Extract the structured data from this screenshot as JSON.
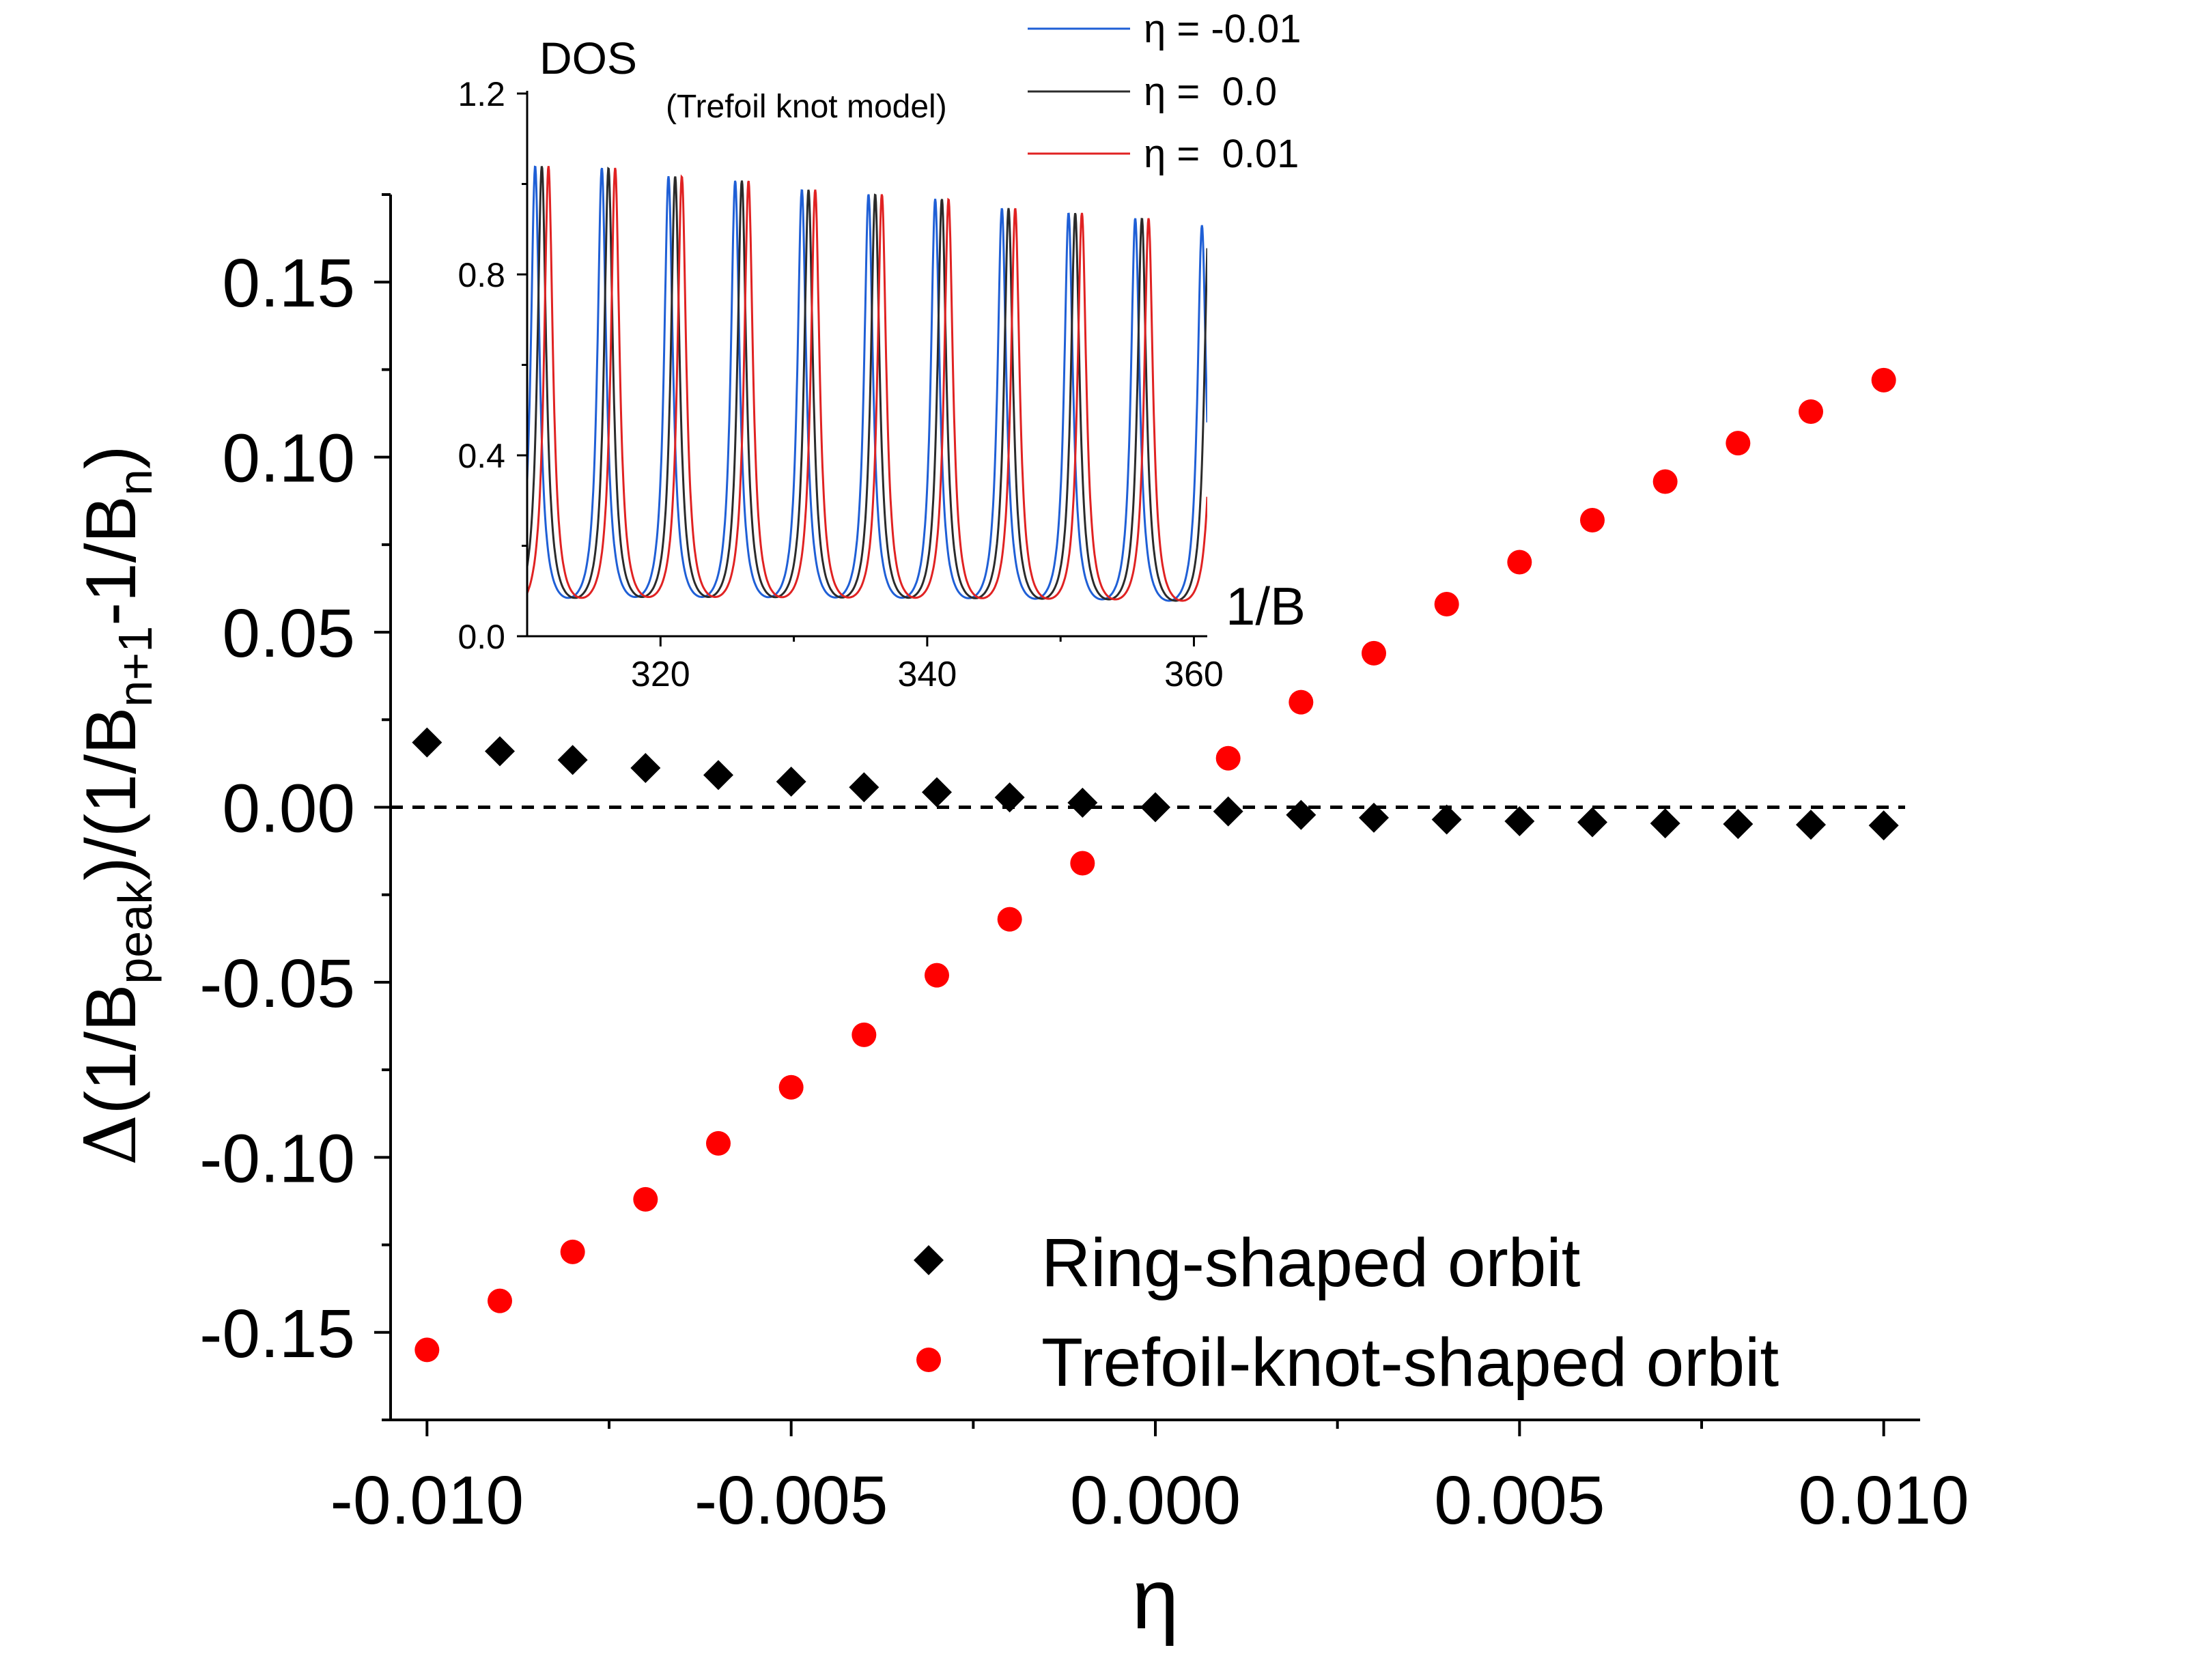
{
  "chart_data": [
    {
      "type": "scatter",
      "title": "",
      "xlabel": "η",
      "ylabel": "Δ(1/B_peak)/(1/B_n+1 - 1/B_n)",
      "ylabel_parts": {
        "prefix": "Δ(1/B",
        "sub1": "peak",
        "mid1": ")/(1/B",
        "sub2": "n+1",
        "mid2": "-1/B",
        "sub3": "n",
        "suffix": ")"
      },
      "xlim": [
        -0.0105,
        0.0105
      ],
      "ylim": [
        -0.175,
        0.175
      ],
      "x_ticks": [
        -0.01,
        -0.005,
        0.0,
        0.005,
        0.01
      ],
      "x_tick_labels": [
        "-0.010",
        "-0.005",
        "0.000",
        "0.005",
        "0.010"
      ],
      "y_ticks": [
        -0.15,
        -0.1,
        -0.05,
        0.0,
        0.05,
        0.1,
        0.15
      ],
      "y_tick_labels": [
        "-0.15",
        "-0.10",
        "-0.05",
        "0.00",
        "0.05",
        "0.10",
        "0.15"
      ],
      "reference_line": {
        "y": 0.0,
        "style": "dashed"
      },
      "legend_position": "bottom-right",
      "series": [
        {
          "name": "Ring-shaped orbit",
          "marker": "diamond",
          "color": "#000000",
          "x": [
            -0.01,
            -0.009,
            -0.008,
            -0.007,
            -0.006,
            -0.005,
            -0.004,
            -0.003,
            -0.002,
            -0.001,
            0.0,
            0.001,
            0.002,
            0.003,
            0.004,
            0.005,
            0.006,
            0.007,
            0.008,
            0.009,
            0.01
          ],
          "y": [
            0.0185,
            0.016,
            0.0135,
            0.0112,
            0.0092,
            0.0073,
            0.0057,
            0.0043,
            0.0028,
            0.0013,
            0.0,
            -0.0012,
            -0.0022,
            -0.003,
            -0.0035,
            -0.004,
            -0.0043,
            -0.0046,
            -0.0048,
            -0.005,
            -0.0052
          ]
        },
        {
          "name": "Trefoil-knot-shaped orbit",
          "marker": "circle",
          "color": "#ff0000",
          "x": [
            -0.01,
            -0.009,
            -0.008,
            -0.007,
            -0.006,
            -0.005,
            -0.004,
            -0.003,
            -0.002,
            -0.001,
            0.001,
            0.002,
            0.003,
            0.004,
            0.005,
            0.006,
            0.007,
            0.008,
            0.009,
            0.01
          ],
          "y": [
            -0.155,
            -0.141,
            -0.127,
            -0.112,
            -0.096,
            -0.08,
            -0.065,
            -0.048,
            -0.032,
            -0.016,
            0.014,
            0.03,
            0.044,
            0.058,
            0.07,
            0.082,
            0.093,
            0.104,
            0.113,
            0.122
          ]
        }
      ]
    },
    {
      "type": "line",
      "title": "DOS",
      "subtitle": "(Trefoil knot model)",
      "xlabel": "1/B",
      "ylabel": "DOS",
      "xlim": [
        310,
        361
      ],
      "ylim": [
        0.0,
        1.2
      ],
      "x_ticks": [
        320,
        340,
        360
      ],
      "x_tick_labels": [
        "320",
        "340",
        "360"
      ],
      "y_ticks": [
        0.0,
        0.4,
        0.8,
        1.2
      ],
      "y_tick_labels": [
        "0.0",
        "0.4",
        "0.8",
        "1.2"
      ],
      "legend_position": "top-right",
      "peak_spacing": 5.0,
      "peak_width": 0.4,
      "baseline": 0.03,
      "peak_heights": [
        1.03,
        1.02,
        1.0,
        0.99,
        0.97,
        0.96,
        0.95,
        0.93,
        0.92,
        0.91,
        0.9
      ],
      "series": [
        {
          "name": "η = -0.01",
          "color": "#1f5fd6",
          "first_peak": 310.6
        },
        {
          "name": "η =  0.0",
          "color": "#2b2b2b",
          "first_peak": 311.1
        },
        {
          "name": "η =  0.01",
          "color": "#e02222",
          "first_peak": 311.6
        }
      ]
    }
  ]
}
